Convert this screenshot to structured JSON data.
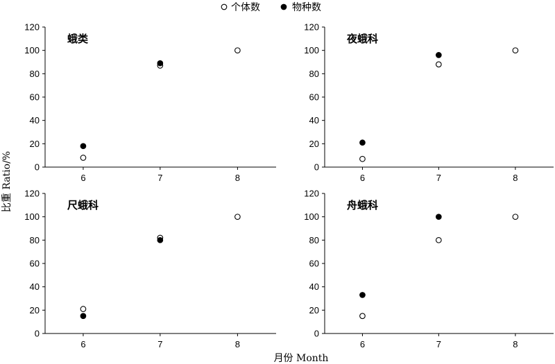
{
  "legend": {
    "open_label": "个体数",
    "filled_label": "物种数"
  },
  "axes": {
    "ylabel": "比重 Ratio/%",
    "xlabel": "月份 Month"
  },
  "chart_data": [
    {
      "type": "scatter",
      "title": "蛾类",
      "x": [
        6,
        7,
        8
      ],
      "xlim": [
        5.5,
        8.5
      ],
      "ylim": [
        0,
        120
      ],
      "yticks": [
        0,
        20,
        40,
        60,
        80,
        100,
        120
      ],
      "series": [
        {
          "name": "个体数",
          "marker": "open",
          "x": [
            6,
            7,
            8
          ],
          "values": [
            8,
            87,
            100
          ]
        },
        {
          "name": "物种数",
          "marker": "filled",
          "x": [
            6,
            7
          ],
          "values": [
            18,
            89
          ]
        }
      ]
    },
    {
      "type": "scatter",
      "title": "夜蛾科",
      "x": [
        6,
        7,
        8
      ],
      "xlim": [
        5.5,
        8.5
      ],
      "ylim": [
        0,
        120
      ],
      "yticks": [
        0,
        20,
        40,
        60,
        80,
        100,
        120
      ],
      "series": [
        {
          "name": "个体数",
          "marker": "open",
          "x": [
            6,
            7,
            8
          ],
          "values": [
            7,
            88,
            100
          ]
        },
        {
          "name": "物种数",
          "marker": "filled",
          "x": [
            6,
            7
          ],
          "values": [
            21,
            96
          ]
        }
      ]
    },
    {
      "type": "scatter",
      "title": "尺蛾科",
      "x": [
        6,
        7,
        8
      ],
      "xlim": [
        5.5,
        8.5
      ],
      "ylim": [
        0,
        120
      ],
      "yticks": [
        0,
        20,
        40,
        60,
        80,
        100,
        120
      ],
      "series": [
        {
          "name": "个体数",
          "marker": "open",
          "x": [
            6,
            7,
            8
          ],
          "values": [
            21,
            82,
            100
          ]
        },
        {
          "name": "物种数",
          "marker": "filled",
          "x": [
            6,
            7
          ],
          "values": [
            15,
            80
          ]
        }
      ]
    },
    {
      "type": "scatter",
      "title": "舟蛾科",
      "x": [
        6,
        7,
        8
      ],
      "xlim": [
        5.5,
        8.5
      ],
      "ylim": [
        0,
        120
      ],
      "yticks": [
        0,
        20,
        40,
        60,
        80,
        100,
        120
      ],
      "series": [
        {
          "name": "个体数",
          "marker": "open",
          "x": [
            6,
            7,
            8
          ],
          "values": [
            15,
            80,
            100
          ]
        },
        {
          "name": "物种数",
          "marker": "filled",
          "x": [
            6,
            7
          ],
          "values": [
            33,
            100
          ]
        }
      ]
    }
  ]
}
